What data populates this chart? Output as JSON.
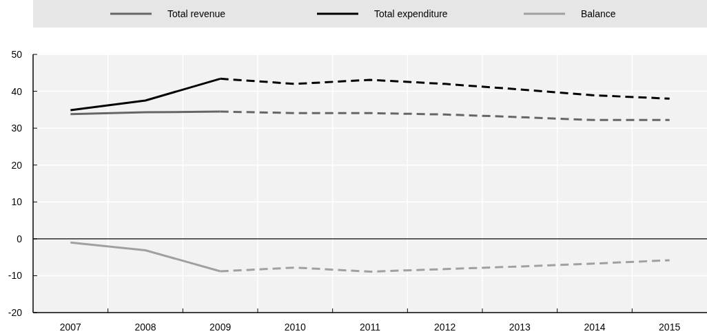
{
  "chart_data": {
    "type": "line",
    "categories": [
      "2007",
      "2008",
      "2009",
      "2010",
      "2011",
      "2012",
      "2013",
      "2014",
      "2015"
    ],
    "series": [
      {
        "name": "Total revenue",
        "color": "#666666",
        "line_style": "solid",
        "values": [
          33.8,
          34.3,
          34.5,
          null,
          null,
          null,
          null,
          null,
          null
        ]
      },
      {
        "name": "Total expenditure",
        "color": "#000000",
        "line_style": "solid",
        "values": [
          34.9,
          37.5,
          43.4,
          null,
          null,
          null,
          null,
          null,
          null
        ]
      },
      {
        "name": "Balance",
        "color": "#a0a0a0",
        "line_style": "solid",
        "values": [
          -1.0,
          -3.1,
          -8.8,
          null,
          null,
          null,
          null,
          null,
          null
        ]
      },
      {
        "color": "#666666",
        "line_style": "dashed",
        "values": [
          null,
          null,
          34.5,
          34.1,
          34.1,
          33.7,
          33.0,
          32.2,
          32.2
        ]
      },
      {
        "color": "#000000",
        "line_style": "dashed",
        "values": [
          null,
          null,
          43.4,
          42.0,
          43.1,
          42.0,
          40.5,
          38.9,
          38.0
        ]
      },
      {
        "color": "#a0a0a0",
        "line_style": "dashed",
        "values": [
          null,
          null,
          -8.8,
          -7.8,
          -8.9,
          -8.2,
          -7.5,
          -6.7,
          -5.8
        ]
      }
    ],
    "ylim": [
      -20,
      50
    ],
    "yticks": [
      -20,
      -10,
      0,
      10,
      20,
      30,
      40,
      50
    ],
    "grid": true,
    "legend": "top"
  }
}
